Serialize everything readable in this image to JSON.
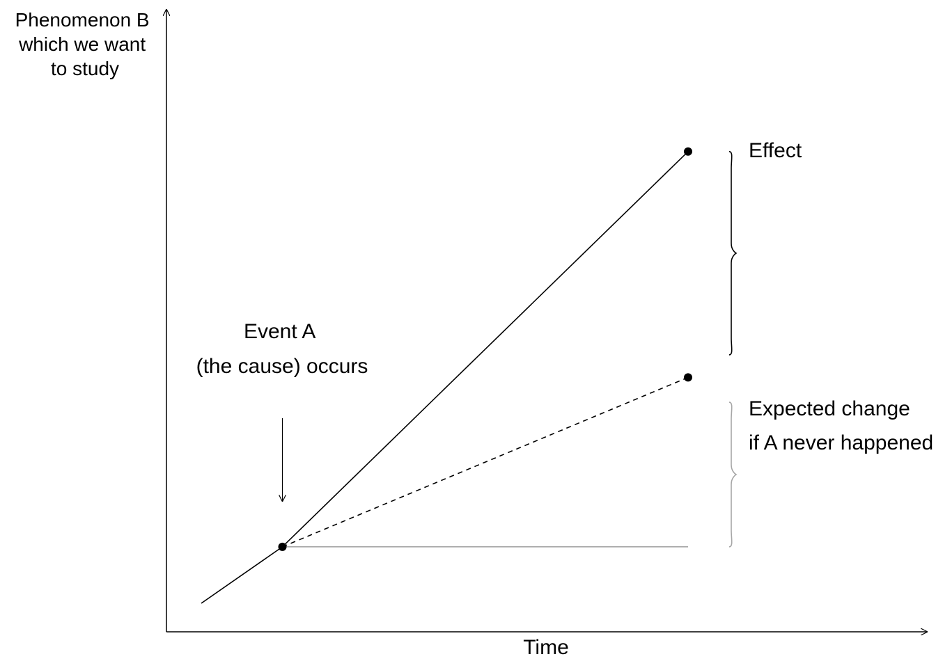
{
  "axes": {
    "y_label_lines": [
      "Phenomenon B",
      "which we want",
      "to study"
    ],
    "x_label": "Time"
  },
  "annotations": {
    "event_lines": [
      "Event A",
      "(the cause) occurs"
    ],
    "effect_label": "Effect",
    "expected_lines": [
      "Expected change",
      "if A never happened"
    ]
  },
  "colors": {
    "ink": "#000000",
    "muted": "#a6a6a6",
    "background": "#ffffff"
  },
  "chart_data": {
    "type": "line",
    "title": "",
    "xlabel": "Time",
    "ylabel": "Phenomenon B which we want to study",
    "series": [
      {
        "style": "solid",
        "x": [
          0.0,
          0.5
        ],
        "y": [
          0.0,
          0.5
        ]
      },
      {
        "style": "solid",
        "x": [
          0.5,
          3.0
        ],
        "y": [
          0.5,
          4.0
        ]
      },
      {
        "style": "dashed",
        "x": [
          0.5,
          3.0
        ],
        "y": [
          0.5,
          2.0
        ]
      },
      {
        "style": "solid-muted",
        "x": [
          0.5,
          3.0
        ],
        "y": [
          0.5,
          0.5
        ]
      }
    ],
    "points": [
      {
        "x": 0.5,
        "y": 0.5
      },
      {
        "x": 3.0,
        "y": 4.0
      },
      {
        "x": 3.0,
        "y": 2.0
      }
    ],
    "braces": [
      {
        "label": "Effect",
        "y_from": 2.0,
        "y_to": 4.0,
        "style": "dark"
      },
      {
        "label": "Expected change if A never happened",
        "y_from": 0.5,
        "y_to": 2.0,
        "style": "muted"
      }
    ],
    "event_arrow": {
      "x": 0.5
    },
    "grid": false,
    "legend": "none"
  }
}
